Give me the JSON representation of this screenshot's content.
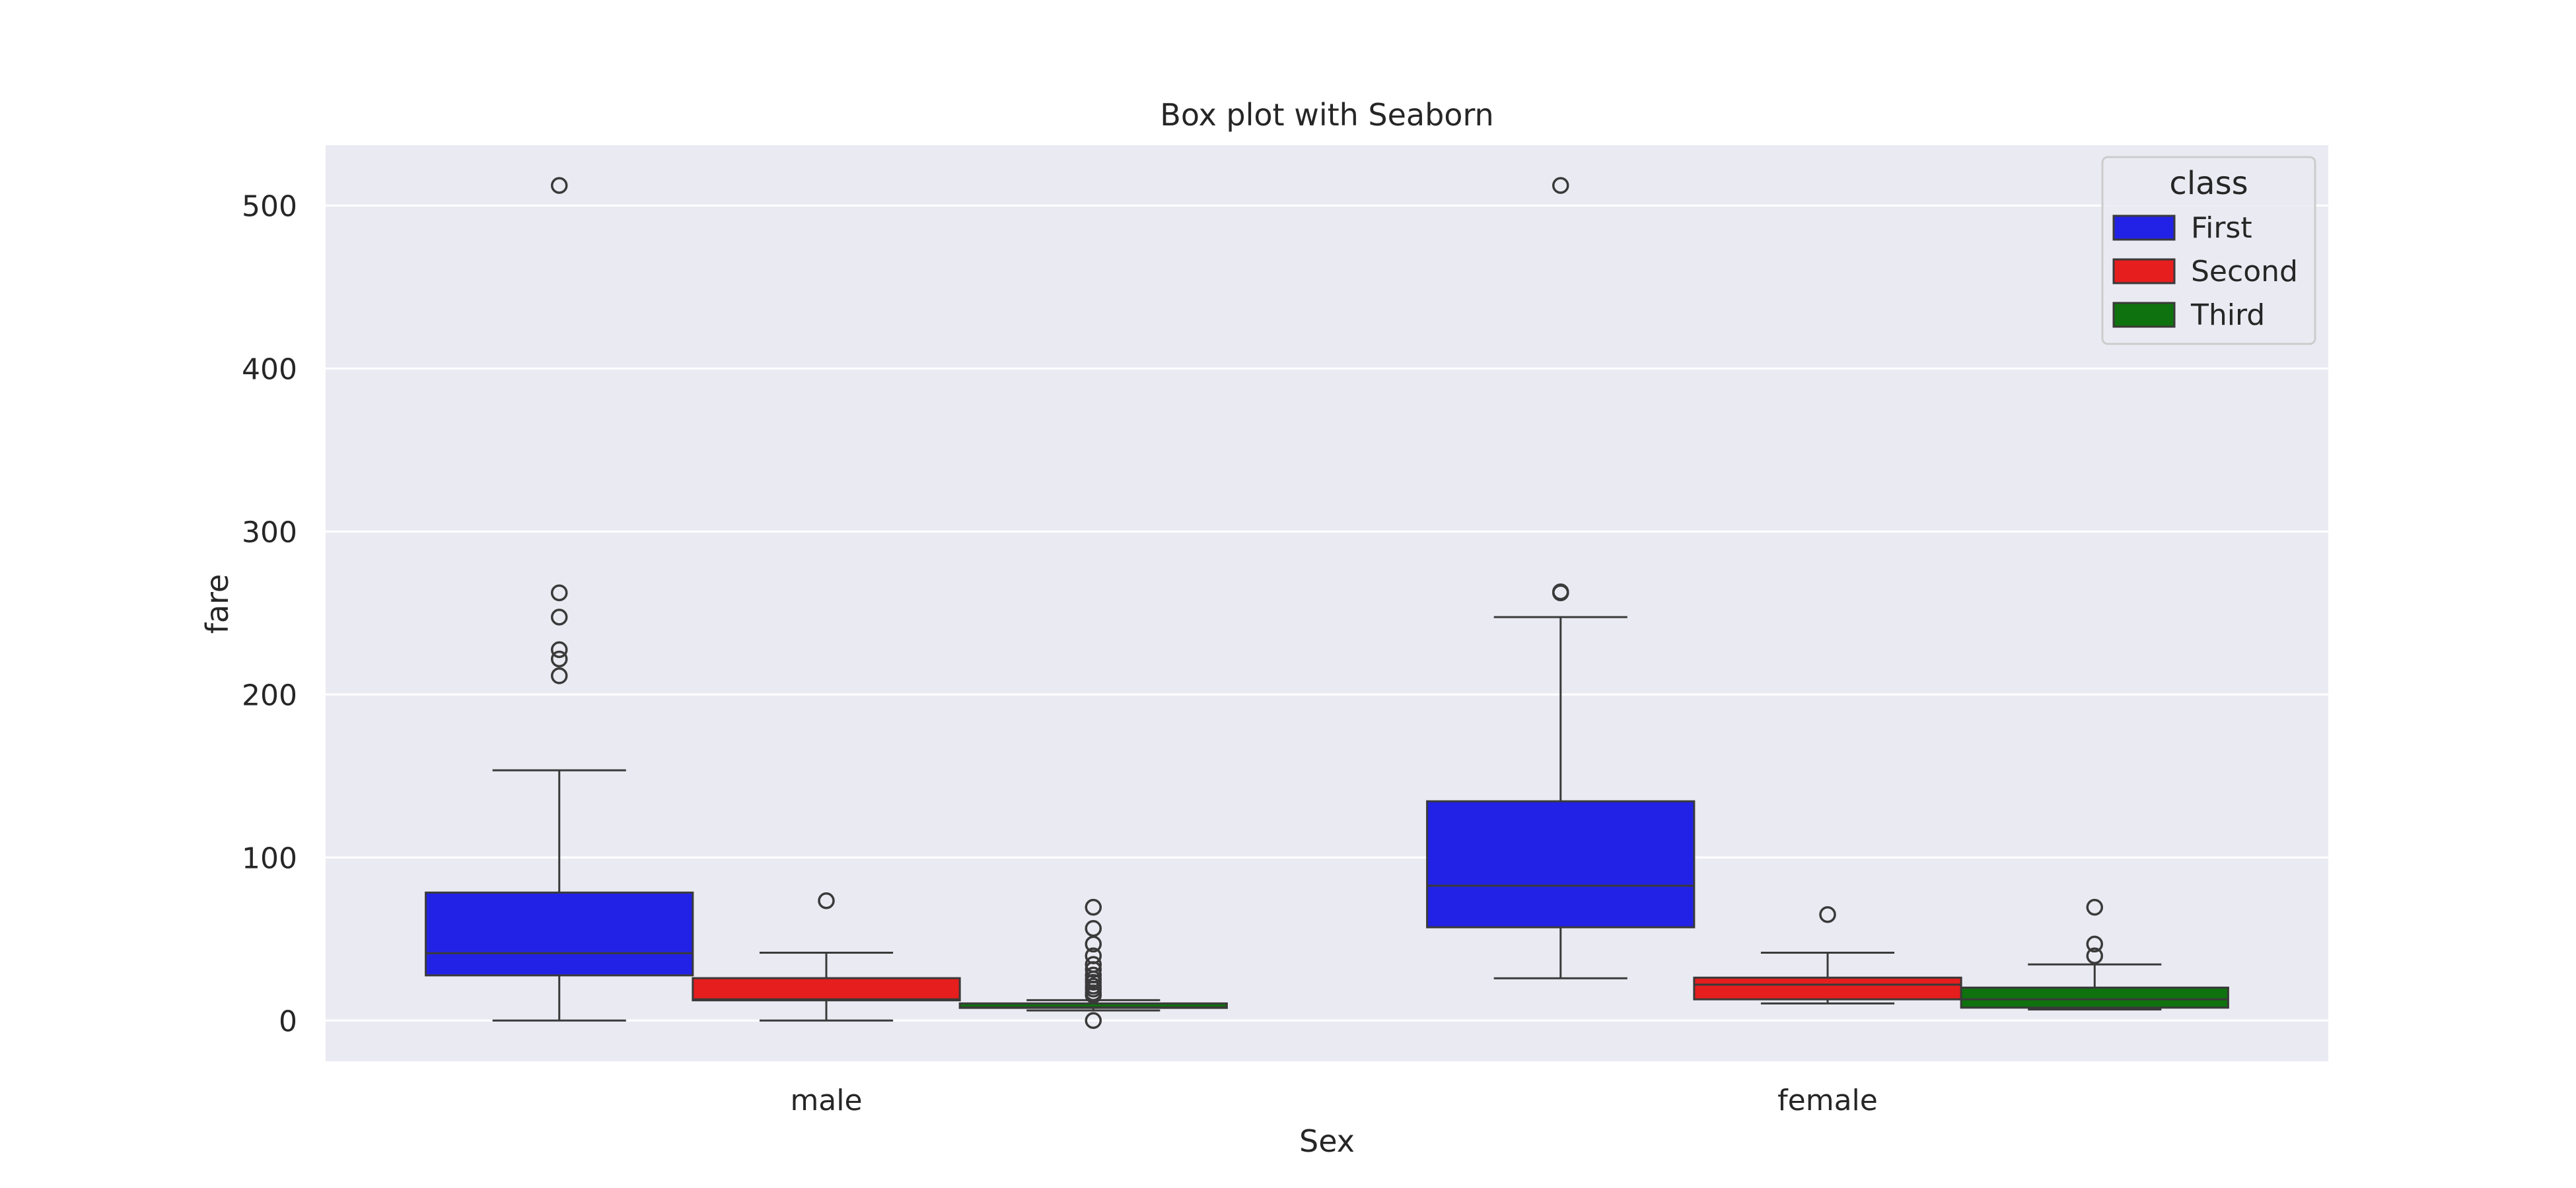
{
  "chart_data": {
    "type": "box",
    "title": "Box plot with Seaborn",
    "xlabel": "Sex",
    "ylabel": "fare",
    "categories": [
      "male",
      "female"
    ],
    "ylim": [
      -25,
      537
    ],
    "yticks": [
      0,
      100,
      200,
      300,
      400,
      500
    ],
    "ytick_labels": [
      "0",
      "100",
      "200",
      "300",
      "400",
      "500"
    ],
    "grid": true,
    "legend": {
      "title": "class",
      "position": "top-right"
    },
    "series": [
      {
        "name": "First",
        "color": "#2222e6",
        "boxes": [
          {
            "category": "male",
            "whisker_low": 0,
            "q1": 27.7,
            "median": 41.3,
            "q3": 78.5,
            "whisker_high": 153.5,
            "outliers": [
              512.3,
              262.4,
              247.5,
              227.5,
              221.8,
              211.5
            ]
          },
          {
            "category": "female",
            "whisker_low": 25.9,
            "q1": 57.2,
            "median": 82.7,
            "q3": 134.5,
            "whisker_high": 247.5,
            "outliers": [
              512.3,
              263.0,
              262.4
            ]
          }
        ]
      },
      {
        "name": "Second",
        "color": "#e61e1e",
        "boxes": [
          {
            "category": "male",
            "whisker_low": 0,
            "q1": 12.4,
            "median": 13.0,
            "q3": 26.0,
            "whisker_high": 41.6,
            "outliers": [
              73.5
            ]
          },
          {
            "category": "female",
            "whisker_low": 10.5,
            "q1": 13.0,
            "median": 22.0,
            "q3": 26.3,
            "whisker_high": 41.6,
            "outliers": [
              65.0
            ]
          }
        ]
      },
      {
        "name": "Third",
        "color": "#0e720e",
        "boxes": [
          {
            "category": "male",
            "whisker_low": 6.2,
            "q1": 7.75,
            "median": 8.05,
            "q3": 10.5,
            "whisker_high": 12.5,
            "outliers": [
              69.5,
              56.5,
              46.9,
              39.7,
              34.4,
              31.3,
              27.9,
              25.5,
              23.5,
              21.1,
              19.3,
              17.0,
              15.5,
              0
            ]
          },
          {
            "category": "female",
            "whisker_low": 6.8,
            "q1": 7.9,
            "median": 13.0,
            "q3": 20.2,
            "whisker_high": 34.4,
            "outliers": [
              69.5,
              46.9,
              39.7
            ]
          }
        ]
      }
    ]
  }
}
